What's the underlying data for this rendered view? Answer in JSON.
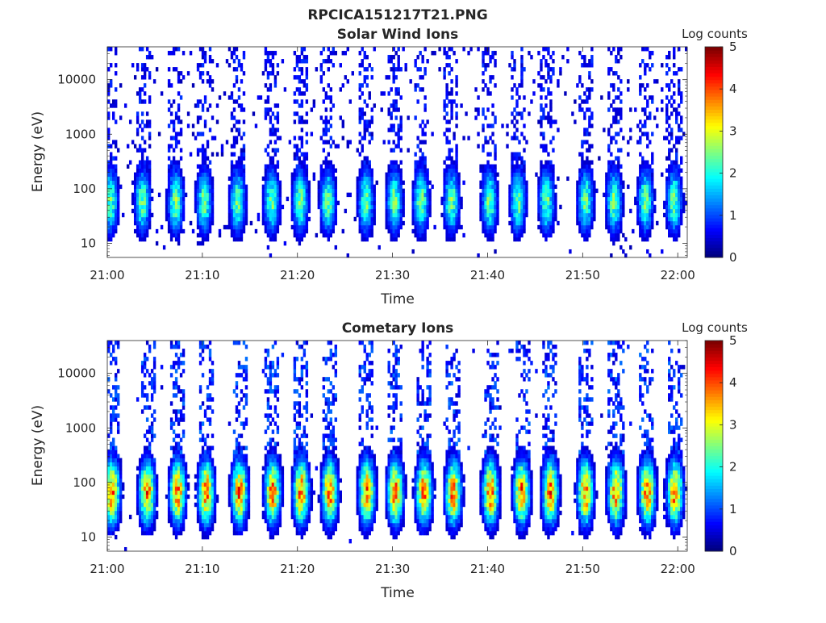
{
  "figure": {
    "title": "RPCICA151217T21.PNG"
  },
  "chart_data": [
    {
      "type": "heatmap",
      "title": "Solar Wind Ions",
      "xlabel": "Time",
      "ylabel": "Energy (eV)",
      "x_range": [
        "21:00",
        "22:01"
      ],
      "x_ticks": [
        "21:00",
        "21:10",
        "21:20",
        "21:30",
        "21:40",
        "21:50",
        "22:00"
      ],
      "y_scale": "log",
      "y_range": [
        5.5,
        40000
      ],
      "y_ticks": [
        10,
        100,
        1000,
        10000
      ],
      "y_tick_labels": [
        "10",
        "100",
        "1000",
        "10000"
      ],
      "colorbar": {
        "label": "Log counts",
        "range": [
          0,
          5
        ],
        "ticks": [
          "0",
          "1",
          "2",
          "3",
          "4",
          "5"
        ],
        "colormap": "jet"
      },
      "burst_centers_min": [
        0.3,
        3.7,
        7.2,
        10.2,
        13.7,
        17.3,
        20.3,
        23.2,
        27.2,
        30.2,
        33.0,
        36.2,
        40.2,
        43.2,
        46.2,
        50.3,
        53.3,
        56.6,
        59.6
      ],
      "core_energy_eV": [
        30,
        120
      ],
      "peak_log_counts": 2.4,
      "background_log_counts": 0.6
    },
    {
      "type": "heatmap",
      "title": "Cometary Ions",
      "xlabel": "Time",
      "ylabel": "Energy (eV)",
      "x_range": [
        "21:00",
        "22:01"
      ],
      "x_ticks": [
        "21:00",
        "21:10",
        "21:20",
        "21:30",
        "21:40",
        "21:50",
        "22:00"
      ],
      "y_scale": "log",
      "y_range": [
        5.5,
        40000
      ],
      "y_ticks": [
        10,
        100,
        1000,
        10000
      ],
      "y_tick_labels": [
        "10",
        "100",
        "1000",
        "10000"
      ],
      "colorbar": {
        "label": "Log counts",
        "range": [
          0,
          5
        ],
        "ticks": [
          "0",
          "1",
          "2",
          "3",
          "4",
          "5"
        ],
        "colormap": "jet"
      },
      "burst_centers_min": [
        0.5,
        4.2,
        7.4,
        10.4,
        13.9,
        17.4,
        20.4,
        23.4,
        27.3,
        30.3,
        33.3,
        36.4,
        40.3,
        43.6,
        46.6,
        50.3,
        53.5,
        56.8,
        59.7
      ],
      "core_energy_eV": [
        30,
        150
      ],
      "peak_log_counts": 3.8,
      "background_log_counts": 0.8
    }
  ]
}
